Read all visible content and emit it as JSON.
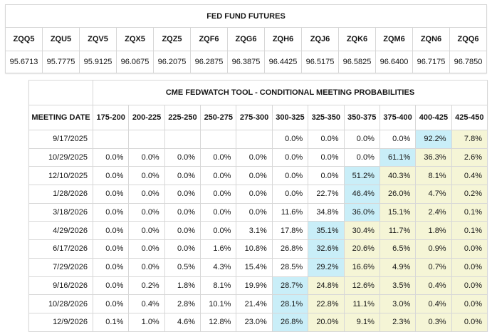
{
  "colors": {
    "highlight_blue": "#c9eef8",
    "highlight_yellow": "#f5f5d6",
    "grid_border": "#d7d7d7",
    "outer_border": "#bdbdbd",
    "text": "#151515"
  },
  "futures": {
    "title": "FED FUND FUTURES",
    "tickers": [
      "ZQQ5",
      "ZQU5",
      "ZQV5",
      "ZQX5",
      "ZQZ5",
      "ZQF6",
      "ZQG6",
      "ZQH6",
      "ZQJ6",
      "ZQK6",
      "ZQM6",
      "ZQN6",
      "ZQQ6"
    ],
    "prices": [
      "95.6713",
      "95.7775",
      "95.9125",
      "96.0675",
      "96.2075",
      "96.2875",
      "96.3875",
      "96.4425",
      "96.5175",
      "96.5825",
      "96.6400",
      "96.7175",
      "96.7850"
    ]
  },
  "fedwatch": {
    "title": "CME FEDWATCH TOOL - CONDITIONAL MEETING PROBABILITIES",
    "date_header": "MEETING DATE",
    "rate_headers": [
      "175-200",
      "200-225",
      "225-250",
      "250-275",
      "275-300",
      "300-325",
      "325-350",
      "350-375",
      "375-400",
      "400-425",
      "425-450"
    ],
    "rows": [
      {
        "date": "9/17/2025",
        "values": [
          "",
          "",
          "",
          "",
          "",
          "0.0%",
          "0.0%",
          "0.0%",
          "0.0%",
          "92.2%",
          "7.8%"
        ],
        "highlight": [
          "",
          "",
          "",
          "",
          "",
          "",
          "",
          "",
          "",
          "blue",
          "yellow"
        ]
      },
      {
        "date": "10/29/2025",
        "values": [
          "0.0%",
          "0.0%",
          "0.0%",
          "0.0%",
          "0.0%",
          "0.0%",
          "0.0%",
          "0.0%",
          "61.1%",
          "36.3%",
          "2.6%"
        ],
        "highlight": [
          "",
          "",
          "",
          "",
          "",
          "",
          "",
          "",
          "blue",
          "yellow",
          "yellow"
        ]
      },
      {
        "date": "12/10/2025",
        "values": [
          "0.0%",
          "0.0%",
          "0.0%",
          "0.0%",
          "0.0%",
          "0.0%",
          "0.0%",
          "51.2%",
          "40.3%",
          "8.1%",
          "0.4%"
        ],
        "highlight": [
          "",
          "",
          "",
          "",
          "",
          "",
          "",
          "blue",
          "yellow",
          "yellow",
          "yellow"
        ]
      },
      {
        "date": "1/28/2026",
        "values": [
          "0.0%",
          "0.0%",
          "0.0%",
          "0.0%",
          "0.0%",
          "0.0%",
          "22.7%",
          "46.4%",
          "26.0%",
          "4.7%",
          "0.2%"
        ],
        "highlight": [
          "",
          "",
          "",
          "",
          "",
          "",
          "",
          "blue",
          "yellow",
          "yellow",
          "yellow"
        ]
      },
      {
        "date": "3/18/2026",
        "values": [
          "0.0%",
          "0.0%",
          "0.0%",
          "0.0%",
          "0.0%",
          "11.6%",
          "34.8%",
          "36.0%",
          "15.1%",
          "2.4%",
          "0.1%"
        ],
        "highlight": [
          "",
          "",
          "",
          "",
          "",
          "",
          "",
          "blue",
          "yellow",
          "yellow",
          "yellow"
        ]
      },
      {
        "date": "4/29/2026",
        "values": [
          "0.0%",
          "0.0%",
          "0.0%",
          "0.0%",
          "3.1%",
          "17.8%",
          "35.1%",
          "30.4%",
          "11.7%",
          "1.8%",
          "0.1%"
        ],
        "highlight": [
          "",
          "",
          "",
          "",
          "",
          "",
          "blue",
          "yellow",
          "yellow",
          "yellow",
          "yellow"
        ]
      },
      {
        "date": "6/17/2026",
        "values": [
          "0.0%",
          "0.0%",
          "0.0%",
          "1.6%",
          "10.8%",
          "26.8%",
          "32.6%",
          "20.6%",
          "6.5%",
          "0.9%",
          "0.0%"
        ],
        "highlight": [
          "",
          "",
          "",
          "",
          "",
          "",
          "blue",
          "yellow",
          "yellow",
          "yellow",
          "yellow"
        ]
      },
      {
        "date": "7/29/2026",
        "values": [
          "0.0%",
          "0.0%",
          "0.5%",
          "4.3%",
          "15.4%",
          "28.5%",
          "29.2%",
          "16.6%",
          "4.9%",
          "0.7%",
          "0.0%"
        ],
        "highlight": [
          "",
          "",
          "",
          "",
          "",
          "",
          "blue",
          "yellow",
          "yellow",
          "yellow",
          "yellow"
        ]
      },
      {
        "date": "9/16/2026",
        "values": [
          "0.0%",
          "0.2%",
          "1.8%",
          "8.1%",
          "19.9%",
          "28.7%",
          "24.8%",
          "12.6%",
          "3.5%",
          "0.4%",
          "0.0%"
        ],
        "highlight": [
          "",
          "",
          "",
          "",
          "",
          "blue",
          "yellow",
          "yellow",
          "yellow",
          "yellow",
          "yellow"
        ]
      },
      {
        "date": "10/28/2026",
        "values": [
          "0.0%",
          "0.4%",
          "2.8%",
          "10.1%",
          "21.4%",
          "28.1%",
          "22.8%",
          "11.1%",
          "3.0%",
          "0.4%",
          "0.0%"
        ],
        "highlight": [
          "",
          "",
          "",
          "",
          "",
          "blue",
          "yellow",
          "yellow",
          "yellow",
          "yellow",
          "yellow"
        ]
      },
      {
        "date": "12/9/2026",
        "values": [
          "0.1%",
          "1.0%",
          "4.6%",
          "12.8%",
          "23.0%",
          "26.8%",
          "20.0%",
          "9.1%",
          "2.3%",
          "0.3%",
          "0.0%"
        ],
        "highlight": [
          "",
          "",
          "",
          "",
          "",
          "blue",
          "yellow",
          "yellow",
          "yellow",
          "yellow",
          "yellow"
        ]
      }
    ]
  }
}
